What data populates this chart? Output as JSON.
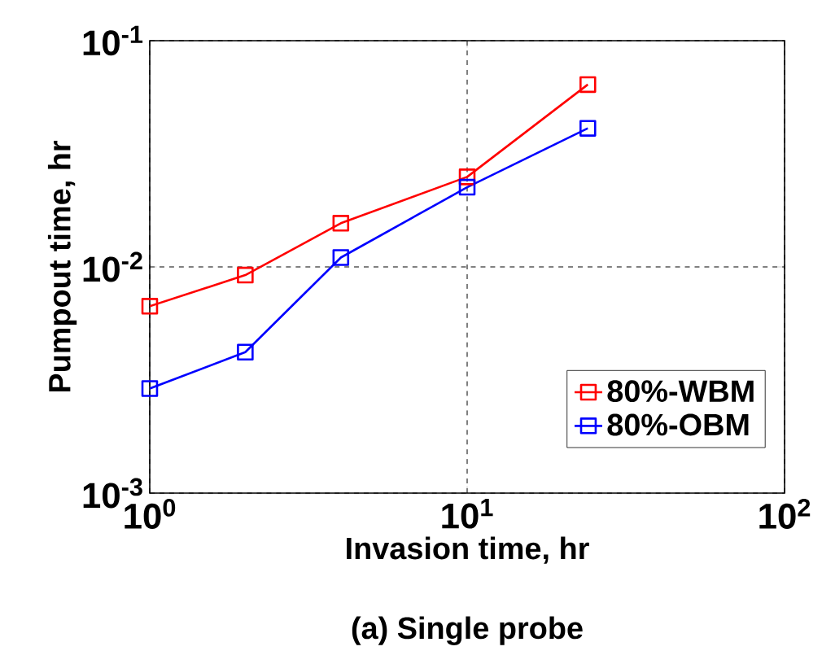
{
  "chart_data": {
    "type": "line",
    "xlabel": "Invasion time, hr",
    "ylabel": "Pumpout time, hr",
    "annotations": [
      "(a) Single probe"
    ],
    "x": [
      1,
      2,
      4,
      10,
      24
    ],
    "series": [
      {
        "name": "80%-WBM",
        "color": "#ff0000",
        "values": [
          0.0067,
          0.0092,
          0.0156,
          0.025,
          0.064
        ]
      },
      {
        "name": "80%-OBM",
        "color": "#0000ff",
        "values": [
          0.0029,
          0.0042,
          0.011,
          0.0225,
          0.041
        ]
      }
    ],
    "log": "xy",
    "xlim": [
      1,
      100
    ],
    "ylim": [
      0.001,
      0.1
    ],
    "xticks": [
      {
        "value": 1,
        "label": "10$^{0}$"
      },
      {
        "value": 10,
        "label": "10$^{1}$"
      },
      {
        "value": 100,
        "label": "10$^{2}$"
      }
    ],
    "yticks": [
      {
        "value": 0.001,
        "label": "10$^{-3}$"
      },
      {
        "value": 0.01,
        "label": "10$^{-2}$"
      },
      {
        "value": 0.1,
        "label": "10$^{-1}$"
      }
    ],
    "grid": true,
    "legend": "bottom right",
    "marker": "square",
    "line_style": "solid"
  }
}
